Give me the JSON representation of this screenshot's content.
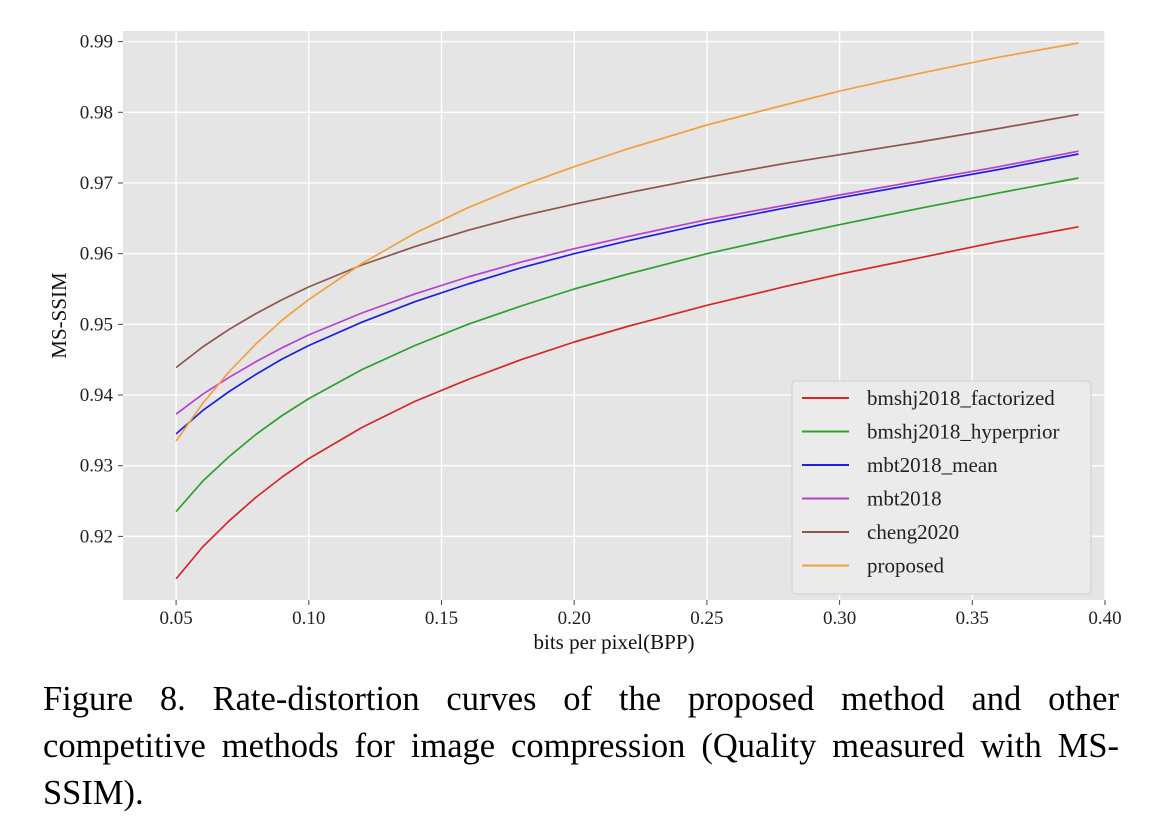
{
  "caption": "Figure 8. Rate-distortion curves of the proposed method and other competitive methods for image compression (Quality measured with MS-SSIM).",
  "chart_data": {
    "type": "line",
    "title": "",
    "xlabel": "bits per pixel(BPP)",
    "ylabel": "MS-SSIM",
    "xlim": [
      0.03,
      0.4
    ],
    "ylim": [
      0.911,
      0.9915
    ],
    "xticks": [
      0.05,
      0.1,
      0.15,
      0.2,
      0.25,
      0.3,
      0.35,
      0.4
    ],
    "xtick_labels": [
      "0.05",
      "0.10",
      "0.15",
      "0.20",
      "0.25",
      "0.30",
      "0.35",
      "0.40"
    ],
    "yticks": [
      0.92,
      0.93,
      0.94,
      0.95,
      0.96,
      0.97,
      0.98,
      0.99
    ],
    "ytick_labels": [
      "0.92",
      "0.93",
      "0.94",
      "0.95",
      "0.96",
      "0.97",
      "0.98",
      "0.99"
    ],
    "grid": true,
    "background": "#e5e5e5",
    "legend_position": "lower-right",
    "x": [
      0.05,
      0.06,
      0.07,
      0.08,
      0.09,
      0.1,
      0.12,
      0.14,
      0.16,
      0.18,
      0.2,
      0.22,
      0.25,
      0.28,
      0.3,
      0.33,
      0.36,
      0.39
    ],
    "series": [
      {
        "name": "bmshj2018_factorized",
        "color": "#d62728",
        "values": [
          0.914,
          0.9185,
          0.9222,
          0.9255,
          0.9284,
          0.931,
          0.9354,
          0.9391,
          0.9422,
          0.945,
          0.9475,
          0.9497,
          0.9527,
          0.9554,
          0.9571,
          0.9594,
          0.9617,
          0.9638
        ]
      },
      {
        "name": "bmshj2018_hyperprior",
        "color": "#2ca02c",
        "values": [
          0.9235,
          0.9278,
          0.9313,
          0.9344,
          0.9371,
          0.9395,
          0.9436,
          0.947,
          0.95,
          0.9526,
          0.955,
          0.9571,
          0.96,
          0.9625,
          0.9641,
          0.9664,
          0.9686,
          0.9707
        ]
      },
      {
        "name": "mbt2018_mean",
        "color": "#1f1fe0",
        "values": [
          0.9345,
          0.9378,
          0.9405,
          0.9429,
          0.9451,
          0.947,
          0.9503,
          0.9532,
          0.9557,
          0.958,
          0.96,
          0.9618,
          0.9643,
          0.9665,
          0.9679,
          0.9699,
          0.9719,
          0.9741
        ]
      },
      {
        "name": "mbt2018",
        "color": "#b73fd6",
        "values": [
          0.9373,
          0.9401,
          0.9425,
          0.9447,
          0.9467,
          0.9485,
          0.9516,
          0.9543,
          0.9567,
          0.9588,
          0.9607,
          0.9624,
          0.9648,
          0.9669,
          0.9683,
          0.9703,
          0.9723,
          0.9745
        ]
      },
      {
        "name": "cheng2020",
        "color": "#8c564b",
        "values": [
          0.9439,
          0.9468,
          0.9493,
          0.9515,
          0.9535,
          0.9553,
          0.9584,
          0.961,
          0.9633,
          0.9653,
          0.967,
          0.9686,
          0.9708,
          0.9728,
          0.974,
          0.9758,
          0.9777,
          0.9797
        ]
      },
      {
        "name": "proposed",
        "color": "#f2a03d",
        "values": [
          0.9335,
          0.9388,
          0.9433,
          0.9472,
          0.9506,
          0.9535,
          0.9586,
          0.9629,
          0.9665,
          0.9696,
          0.9723,
          0.9748,
          0.9782,
          0.9811,
          0.983,
          0.9855,
          0.9878,
          0.9898
        ]
      }
    ]
  }
}
